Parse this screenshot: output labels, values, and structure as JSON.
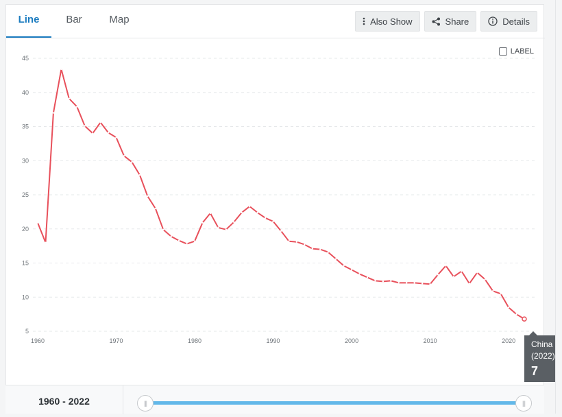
{
  "tabs": [
    {
      "label": "Line",
      "active": true
    },
    {
      "label": "Bar",
      "active": false
    },
    {
      "label": "Map",
      "active": false
    }
  ],
  "toolbar": {
    "also_show": "Also Show",
    "share": "Share",
    "details": "Details"
  },
  "label_toggle": "LABEL",
  "tooltip": {
    "country": "China",
    "year": "(2022)",
    "value": "7"
  },
  "range": {
    "start": "1960",
    "sep": " - ",
    "end": "2022"
  },
  "chart_data": {
    "type": "line",
    "xlim": [
      1960,
      2022
    ],
    "ylim": [
      5,
      45
    ],
    "yticks": [
      5,
      10,
      15,
      20,
      25,
      30,
      35,
      40,
      45
    ],
    "xticks": [
      1960,
      1970,
      1980,
      1990,
      2000,
      2010,
      2020
    ],
    "grid": true,
    "line_color": "#e8505b",
    "series": [
      {
        "x": [
          1960,
          1961,
          1962,
          1963,
          1964,
          1965,
          1966,
          1967,
          1968,
          1969,
          1970,
          1971,
          1972,
          1973,
          1974,
          1975,
          1976,
          1977,
          1978,
          1979,
          1980,
          1981,
          1982,
          1983,
          1984,
          1985,
          1986,
          1987,
          1988,
          1989,
          1990,
          1991,
          1992,
          1993,
          1994,
          1995,
          1996,
          1997,
          1998,
          1999,
          2000,
          2001,
          2002,
          2003,
          2004,
          2005,
          2006,
          2007,
          2008,
          2009,
          2010,
          2011,
          2012,
          2013,
          2014,
          2015,
          2016,
          2017,
          2018,
          2019,
          2020,
          2021,
          2022
        ],
        "values": [
          20.9,
          18.0,
          37.0,
          43.4,
          39.1,
          37.9,
          35.1,
          34.0,
          35.6,
          34.1,
          33.4,
          30.7,
          29.8,
          27.9,
          24.8,
          23.0,
          19.9,
          18.9,
          18.3,
          17.8,
          18.2,
          20.9,
          22.3,
          20.2,
          19.9,
          21.0,
          22.4,
          23.3,
          22.4,
          21.6,
          21.1,
          19.7,
          18.2,
          18.1,
          17.7,
          17.1,
          17.0,
          16.6,
          15.6,
          14.6,
          14.0,
          13.4,
          12.9,
          12.4,
          12.3,
          12.4,
          12.1,
          12.1,
          12.1,
          12.0,
          11.9,
          13.3,
          14.6,
          13.0,
          13.8,
          12.0,
          13.6,
          12.6,
          10.9,
          10.5,
          8.5,
          7.5,
          6.8
        ]
      }
    ]
  }
}
